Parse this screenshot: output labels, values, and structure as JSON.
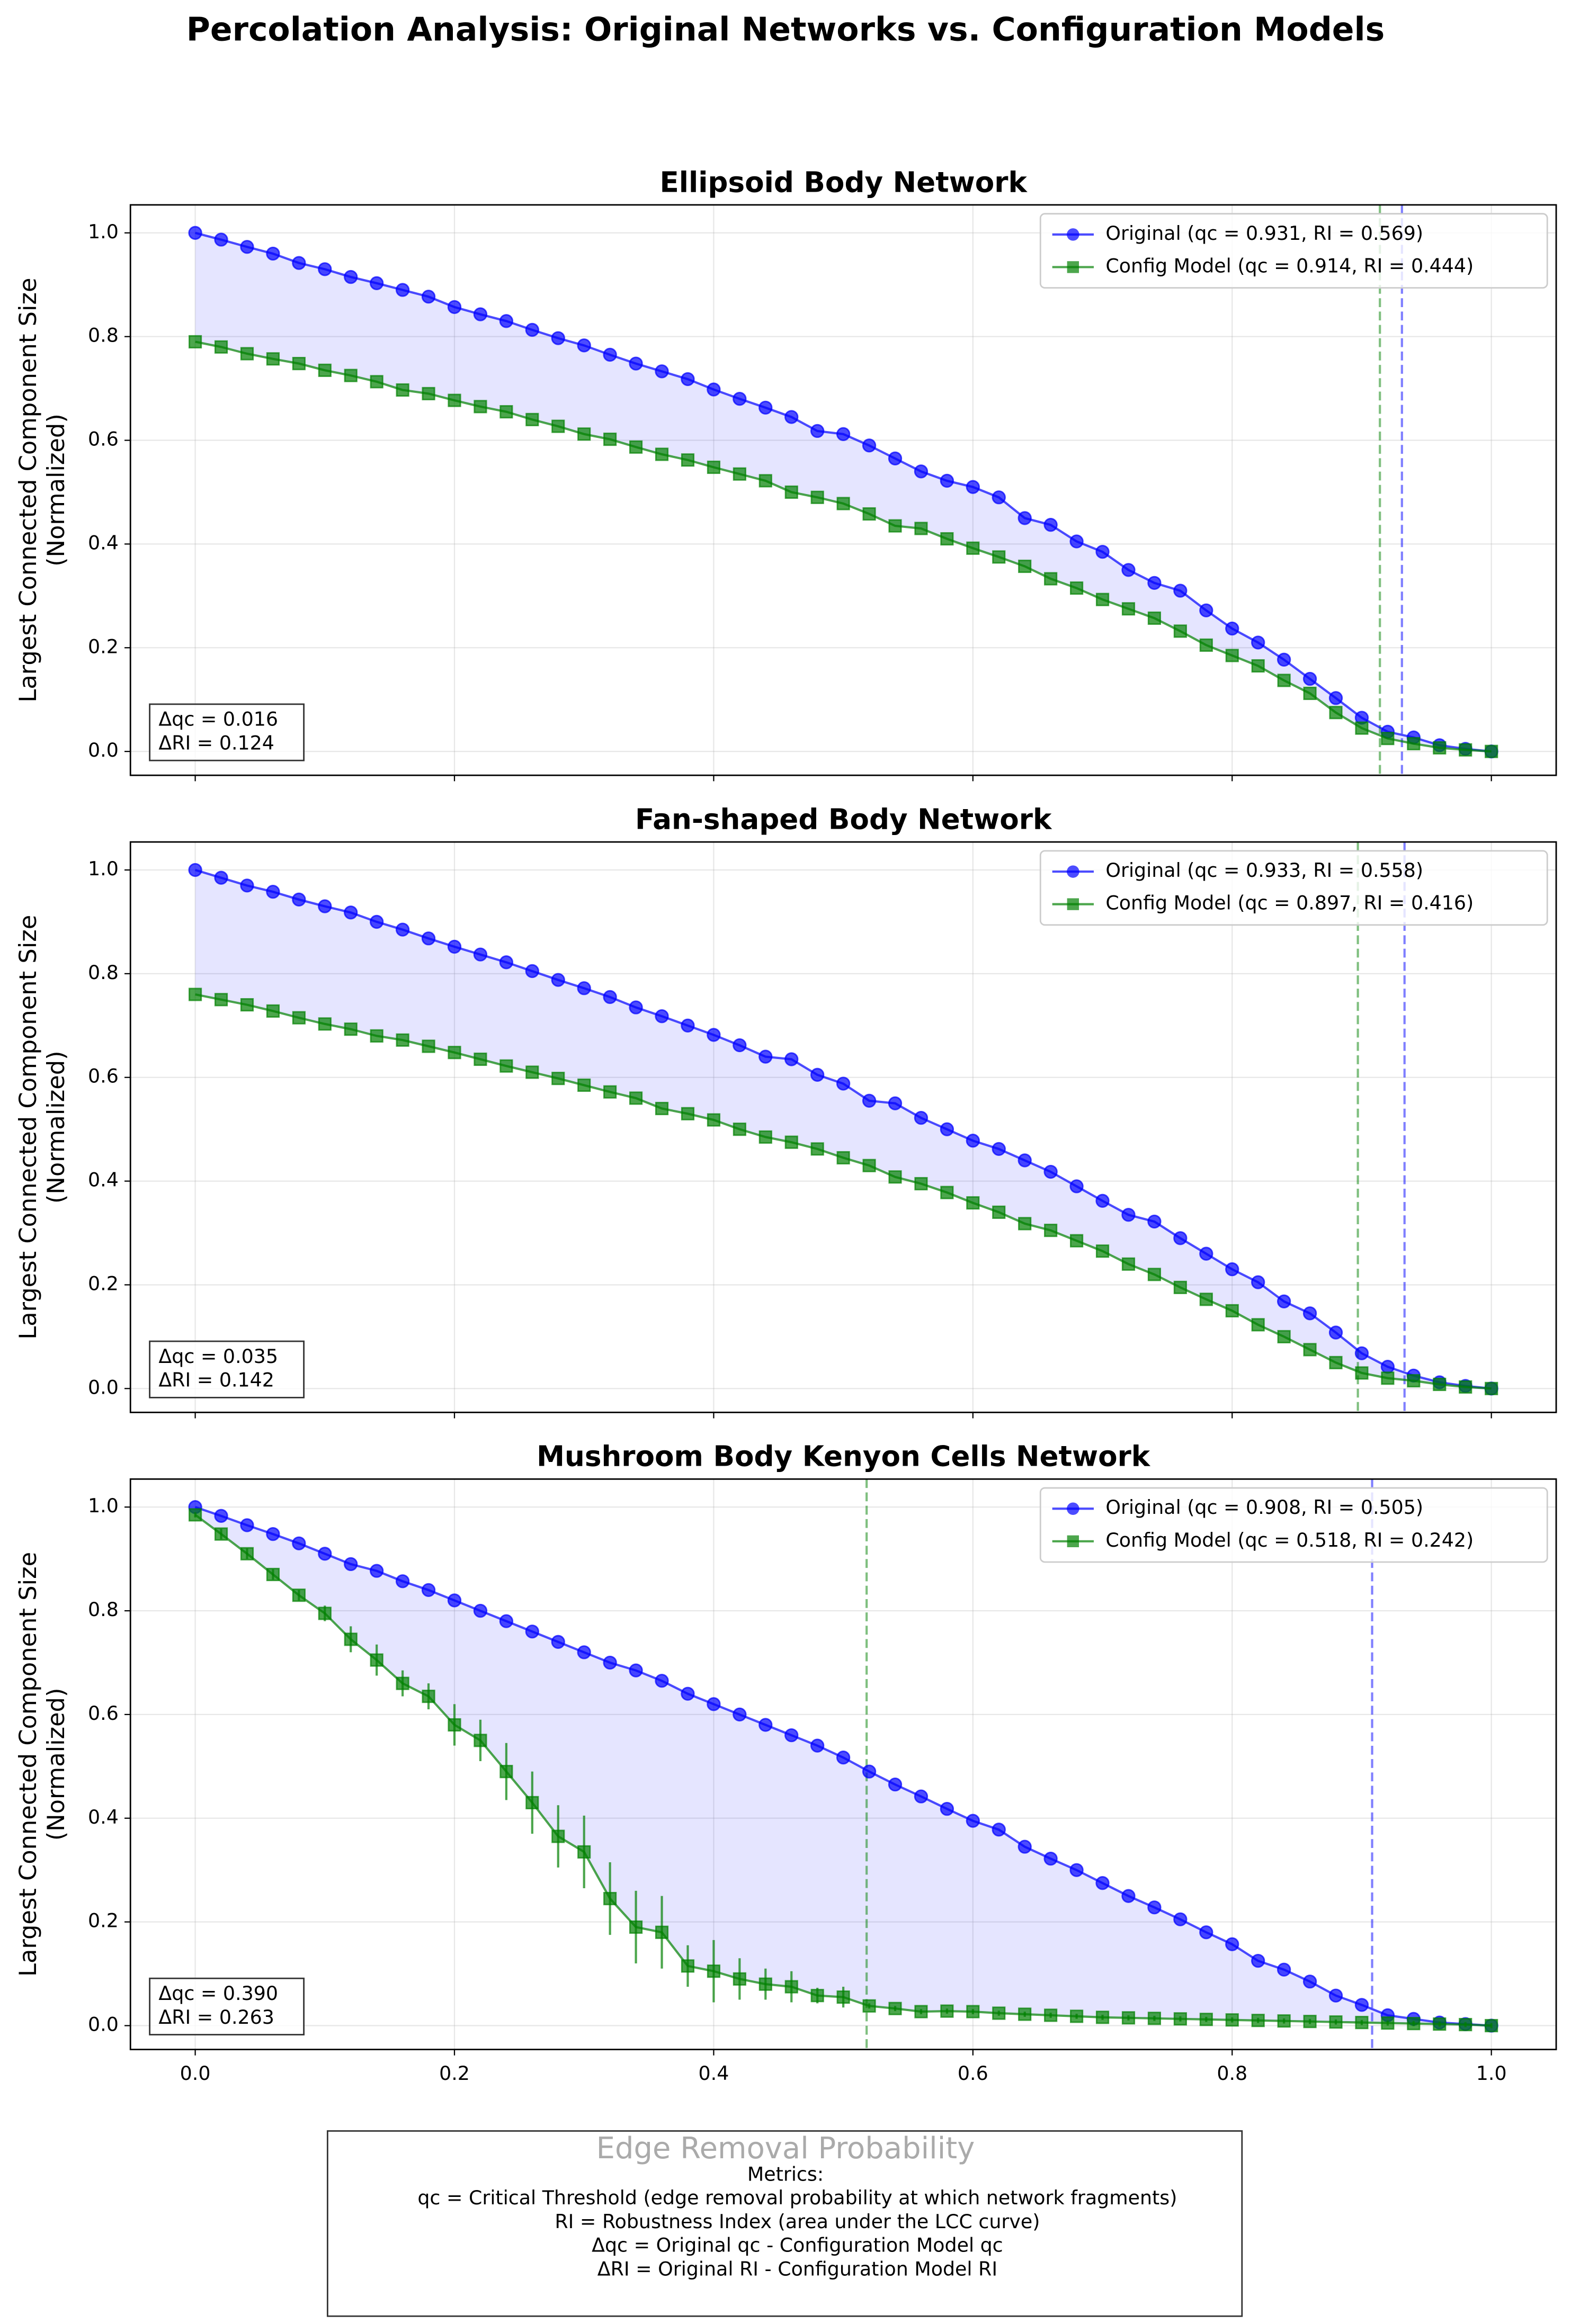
{
  "title": "Percolation Analysis: Original Networks vs. Configuration Models",
  "x_label": "Edge Removal Probability",
  "metrics_note": {
    "heading": "Metrics:",
    "lines": [
      "qc = Critical Threshold (edge removal probability at which network fragments)",
      "RI = Robustness Index (area under the LCC curve)",
      "Δqc = Original qc - Configuration Model qc",
      "ΔRI = Original RI - Configuration Model RI"
    ]
  },
  "chart_data": [
    {
      "type": "line",
      "title": "Ellipsoid Body Network",
      "y_label": [
        "Largest Connected Component Size",
        "(Normalized)"
      ],
      "x": [
        0,
        0.02,
        0.04,
        0.06,
        0.08,
        0.1,
        0.12,
        0.14,
        0.16,
        0.18,
        0.2,
        0.22,
        0.24,
        0.26,
        0.28,
        0.3,
        0.32,
        0.34,
        0.36,
        0.38,
        0.4,
        0.42,
        0.44,
        0.46,
        0.48,
        0.5,
        0.52,
        0.54,
        0.56,
        0.58,
        0.6,
        0.62,
        0.64,
        0.66,
        0.68,
        0.7,
        0.72,
        0.74,
        0.76,
        0.78,
        0.8,
        0.82,
        0.84,
        0.86,
        0.88,
        0.9,
        0.92,
        0.94,
        0.96,
        0.98,
        1
      ],
      "series": [
        {
          "name": "Original (qc = 0.931, RI = 0.569)",
          "color": "#0000ff",
          "marker": "circle",
          "values": [
            1.0,
            0.987,
            0.973,
            0.96,
            0.942,
            0.93,
            0.915,
            0.903,
            0.89,
            0.877,
            0.857,
            0.843,
            0.83,
            0.813,
            0.797,
            0.783,
            0.765,
            0.748,
            0.733,
            0.718,
            0.698,
            0.68,
            0.663,
            0.645,
            0.618,
            0.612,
            0.59,
            0.565,
            0.54,
            0.522,
            0.51,
            0.49,
            0.45,
            0.437,
            0.405,
            0.385,
            0.35,
            0.325,
            0.31,
            0.272,
            0.237,
            0.21,
            0.177,
            0.14,
            0.103,
            0.065,
            0.038,
            0.027,
            0.012,
            0.005,
            0.0
          ]
        },
        {
          "name": "Config Model (qc = 0.914, RI = 0.444)",
          "color": "#008000",
          "marker": "square",
          "values": [
            0.79,
            0.78,
            0.767,
            0.757,
            0.748,
            0.735,
            0.725,
            0.713,
            0.697,
            0.69,
            0.677,
            0.665,
            0.655,
            0.64,
            0.627,
            0.612,
            0.602,
            0.587,
            0.573,
            0.562,
            0.548,
            0.535,
            0.522,
            0.5,
            0.49,
            0.478,
            0.458,
            0.435,
            0.43,
            0.41,
            0.392,
            0.375,
            0.357,
            0.333,
            0.315,
            0.293,
            0.275,
            0.257,
            0.232,
            0.205,
            0.185,
            0.165,
            0.137,
            0.112,
            0.075,
            0.045,
            0.025,
            0.015,
            0.007,
            0.003,
            0.0
          ]
        }
      ],
      "vlines": [
        {
          "x": 0.931,
          "color": "#0000ff"
        },
        {
          "x": 0.914,
          "color": "#008000"
        }
      ],
      "annotation": [
        "Δqc = 0.016",
        "ΔRI = 0.124"
      ],
      "xlim": [
        -0.05,
        1.05
      ],
      "ylim": [
        -0.046,
        1.054
      ],
      "xticks": [
        0,
        0.2,
        0.4,
        0.6,
        0.8,
        1
      ],
      "yticks": [
        {
          "value": 0,
          "label": "0.0"
        },
        {
          "value": 0.2,
          "label": "0.2"
        },
        {
          "value": 0.4,
          "label": "0.4"
        },
        {
          "value": 0.6,
          "label": "0.6"
        },
        {
          "value": 0.8,
          "label": "0.8"
        },
        {
          "value": 1,
          "label": "1.0"
        }
      ],
      "grid": true,
      "legend": "upper right"
    },
    {
      "type": "line",
      "title": "Fan-shaped Body Network",
      "y_label": [
        "Largest Connected Component Size",
        "(Normalized)"
      ],
      "x": [
        0,
        0.02,
        0.04,
        0.06,
        0.08,
        0.1,
        0.12,
        0.14,
        0.16,
        0.18,
        0.2,
        0.22,
        0.24,
        0.26,
        0.28,
        0.3,
        0.32,
        0.34,
        0.36,
        0.38,
        0.4,
        0.42,
        0.44,
        0.46,
        0.48,
        0.5,
        0.52,
        0.54,
        0.56,
        0.58,
        0.6,
        0.62,
        0.64,
        0.66,
        0.68,
        0.7,
        0.72,
        0.74,
        0.76,
        0.78,
        0.8,
        0.82,
        0.84,
        0.86,
        0.88,
        0.9,
        0.92,
        0.94,
        0.96,
        0.98,
        1
      ],
      "series": [
        {
          "name": "Original (qc = 0.933, RI = 0.558)",
          "color": "#0000ff",
          "marker": "circle",
          "values": [
            1.0,
            0.985,
            0.97,
            0.958,
            0.943,
            0.93,
            0.918,
            0.9,
            0.885,
            0.868,
            0.852,
            0.837,
            0.822,
            0.805,
            0.788,
            0.772,
            0.755,
            0.735,
            0.718,
            0.7,
            0.682,
            0.662,
            0.64,
            0.635,
            0.605,
            0.588,
            0.555,
            0.55,
            0.522,
            0.5,
            0.478,
            0.462,
            0.44,
            0.418,
            0.39,
            0.362,
            0.335,
            0.322,
            0.29,
            0.26,
            0.23,
            0.205,
            0.168,
            0.145,
            0.108,
            0.068,
            0.042,
            0.025,
            0.012,
            0.005,
            0.0
          ]
        },
        {
          "name": "Config Model (qc = 0.897, RI = 0.416)",
          "color": "#008000",
          "marker": "square",
          "values": [
            0.76,
            0.75,
            0.74,
            0.728,
            0.715,
            0.703,
            0.693,
            0.68,
            0.672,
            0.66,
            0.648,
            0.635,
            0.622,
            0.61,
            0.598,
            0.585,
            0.572,
            0.56,
            0.54,
            0.53,
            0.518,
            0.5,
            0.485,
            0.475,
            0.462,
            0.445,
            0.43,
            0.408,
            0.395,
            0.378,
            0.358,
            0.34,
            0.318,
            0.305,
            0.285,
            0.265,
            0.24,
            0.22,
            0.195,
            0.172,
            0.15,
            0.123,
            0.1,
            0.075,
            0.05,
            0.03,
            0.02,
            0.015,
            0.008,
            0.003,
            0.0
          ]
        }
      ],
      "vlines": [
        {
          "x": 0.933,
          "color": "#0000ff"
        },
        {
          "x": 0.897,
          "color": "#008000"
        }
      ],
      "annotation": [
        "Δqc = 0.035",
        "ΔRI = 0.142"
      ],
      "xlim": [
        -0.05,
        1.05
      ],
      "ylim": [
        -0.046,
        1.054
      ],
      "xticks": [
        0,
        0.2,
        0.4,
        0.6,
        0.8,
        1
      ],
      "yticks": [
        {
          "value": 0,
          "label": "0.0"
        },
        {
          "value": 0.2,
          "label": "0.2"
        },
        {
          "value": 0.4,
          "label": "0.4"
        },
        {
          "value": 0.6,
          "label": "0.6"
        },
        {
          "value": 0.8,
          "label": "0.8"
        },
        {
          "value": 1,
          "label": "1.0"
        }
      ],
      "grid": true,
      "legend": "upper right"
    },
    {
      "type": "line",
      "title": "Mushroom Body Kenyon Cells Network",
      "y_label": [
        "Largest Connected Component Size",
        "(Normalized)"
      ],
      "x": [
        0,
        0.02,
        0.04,
        0.06,
        0.08,
        0.1,
        0.12,
        0.14,
        0.16,
        0.18,
        0.2,
        0.22,
        0.24,
        0.26,
        0.28,
        0.3,
        0.32,
        0.34,
        0.36,
        0.38,
        0.4,
        0.42,
        0.44,
        0.46,
        0.48,
        0.5,
        0.52,
        0.54,
        0.56,
        0.58,
        0.6,
        0.62,
        0.64,
        0.66,
        0.68,
        0.7,
        0.72,
        0.74,
        0.76,
        0.78,
        0.8,
        0.82,
        0.84,
        0.86,
        0.88,
        0.9,
        0.92,
        0.94,
        0.96,
        0.98,
        1
      ],
      "series": [
        {
          "name": "Original (qc = 0.908, RI = 0.505)",
          "color": "#0000ff",
          "marker": "circle",
          "values": [
            1.0,
            0.983,
            0.965,
            0.948,
            0.93,
            0.91,
            0.89,
            0.877,
            0.857,
            0.84,
            0.82,
            0.8,
            0.78,
            0.76,
            0.74,
            0.72,
            0.7,
            0.685,
            0.665,
            0.64,
            0.62,
            0.6,
            0.58,
            0.56,
            0.54,
            0.517,
            0.49,
            0.465,
            0.442,
            0.418,
            0.395,
            0.378,
            0.345,
            0.322,
            0.3,
            0.275,
            0.25,
            0.228,
            0.205,
            0.18,
            0.157,
            0.125,
            0.108,
            0.085,
            0.058,
            0.04,
            0.02,
            0.013,
            0.006,
            0.003,
            0.0
          ]
        },
        {
          "name": "Config Model (qc = 0.518, RI = 0.242)",
          "color": "#008000",
          "marker": "square",
          "values": [
            0.985,
            0.948,
            0.91,
            0.87,
            0.83,
            0.795,
            0.745,
            0.705,
            0.66,
            0.635,
            0.58,
            0.55,
            0.49,
            0.43,
            0.365,
            0.335,
            0.245,
            0.19,
            0.18,
            0.115,
            0.105,
            0.09,
            0.08,
            0.075,
            0.058,
            0.055,
            0.038,
            0.033,
            0.027,
            0.028,
            0.027,
            0.024,
            0.022,
            0.02,
            0.018,
            0.016,
            0.015,
            0.014,
            0.013,
            0.012,
            0.011,
            0.01,
            0.009,
            0.008,
            0.007,
            0.006,
            0.005,
            0.004,
            0.003,
            0.002,
            0.0
          ],
          "errors": [
            0.005,
            0.01,
            0.01,
            0.01,
            0.01,
            0.015,
            0.025,
            0.03,
            0.025,
            0.025,
            0.04,
            0.04,
            0.055,
            0.06,
            0.06,
            0.07,
            0.07,
            0.07,
            0.07,
            0.04,
            0.06,
            0.04,
            0.03,
            0.03,
            0.015,
            0.02,
            0.005,
            0.005,
            0.005,
            0.005,
            0.005,
            0.005,
            0.005,
            0.005,
            0.005,
            0.005,
            0.005,
            0.005,
            0.005,
            0.005,
            0.005,
            0.005,
            0.005,
            0.005,
            0.005,
            0.005,
            0.005,
            0.005,
            0.005,
            0.005,
            0.005
          ]
        }
      ],
      "vlines": [
        {
          "x": 0.908,
          "color": "#0000ff"
        },
        {
          "x": 0.518,
          "color": "#008000"
        }
      ],
      "annotation": [
        "Δqc = 0.390",
        "ΔRI = 0.263"
      ],
      "xlim": [
        -0.05,
        1.05
      ],
      "ylim": [
        -0.046,
        1.054
      ],
      "xticks": [
        {
          "value": 0,
          "label": "0.0"
        },
        {
          "value": 0.2,
          "label": "0.2"
        },
        {
          "value": 0.4,
          "label": "0.4"
        },
        {
          "value": 0.6,
          "label": "0.6"
        },
        {
          "value": 0.8,
          "label": "0.8"
        },
        {
          "value": 1,
          "label": "1.0"
        }
      ],
      "yticks": [
        {
          "value": 0,
          "label": "0.0"
        },
        {
          "value": 0.2,
          "label": "0.2"
        },
        {
          "value": 0.4,
          "label": "0.4"
        },
        {
          "value": 0.6,
          "label": "0.6"
        },
        {
          "value": 0.8,
          "label": "0.8"
        },
        {
          "value": 1,
          "label": "1.0"
        }
      ],
      "grid": true,
      "legend": "upper right"
    }
  ]
}
